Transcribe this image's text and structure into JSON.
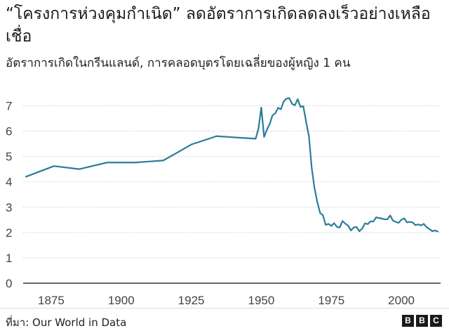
{
  "header": {
    "title": "“โครงการห่วงคุมกำเนิด” ลดอัตราการเกิดลดลงเร็วอย่างเหลือเชื่อ",
    "subtitle": "อัตราการเกิดในกรีนแลนด์, การคลอดบุตรโดยเฉลี่ยของผู้หญิง 1 คน"
  },
  "footer": {
    "source": "ที่มา: Our World in Data",
    "logo_letters": [
      "B",
      "B",
      "C"
    ]
  },
  "colors": {
    "line": "#2b7c9a",
    "grid": "#d4d4d4",
    "baseline": "#333333",
    "tick_text": "#444444"
  },
  "chart_data": {
    "type": "line",
    "title": "“โครงการห่วงคุมกำเนิด” ลดอัตราการเกิดลดลงเร็วอย่างเหลือเชื่อ",
    "subtitle": "อัตราการเกิดในกรีนแลนด์, การคลอดบุตรโดยเฉลี่ยของผู้หญิง 1 คน",
    "xlabel": "",
    "ylabel": "",
    "xlim": [
      1865,
      2014
    ],
    "ylim": [
      0,
      7.4
    ],
    "xticks": [
      1875,
      1900,
      1925,
      1950,
      1975,
      2000
    ],
    "yticks": [
      0,
      1,
      2,
      3,
      4,
      5,
      6,
      7
    ],
    "grid": "horizontal",
    "legend": "none",
    "series": [
      {
        "x": [
          1866,
          1876,
          1885,
          1890,
          1895,
          1900,
          1905,
          1910,
          1915,
          1920,
          1925,
          1930,
          1934,
          1938,
          1942,
          1945,
          1948,
          1949,
          1950,
          1951,
          1952,
          1953,
          1954,
          1955,
          1956,
          1957,
          1958,
          1959,
          1960,
          1961,
          1962,
          1963,
          1964,
          1965,
          1966,
          1967,
          1968,
          1969,
          1970,
          1971,
          1972,
          1973,
          1974,
          1975,
          1976,
          1977,
          1978,
          1979,
          1980,
          1981,
          1982,
          1983,
          1984,
          1985,
          1986,
          1987,
          1988,
          1989,
          1990,
          1991,
          1992,
          1993,
          1994,
          1995,
          1996,
          1997,
          1998,
          1999,
          2000,
          2001,
          2002,
          2003,
          2004,
          2005,
          2006,
          2007,
          2008,
          2009,
          2010,
          2011,
          2012,
          2013
        ],
        "values": [
          4.2,
          4.62,
          4.5,
          4.63,
          4.76,
          4.76,
          4.76,
          4.8,
          4.84,
          5.15,
          5.47,
          5.65,
          5.8,
          5.77,
          5.74,
          5.72,
          5.7,
          6.1,
          6.93,
          5.77,
          6.05,
          6.28,
          6.62,
          6.7,
          6.92,
          6.86,
          7.17,
          7.28,
          7.3,
          7.07,
          7.02,
          7.26,
          6.95,
          6.98,
          6.37,
          5.8,
          4.55,
          3.75,
          3.2,
          2.77,
          2.68,
          2.3,
          2.34,
          2.26,
          2.37,
          2.22,
          2.2,
          2.45,
          2.35,
          2.27,
          2.08,
          2.2,
          2.22,
          2.05,
          2.15,
          2.36,
          2.33,
          2.44,
          2.43,
          2.6,
          2.57,
          2.55,
          2.52,
          2.52,
          2.67,
          2.47,
          2.42,
          2.38,
          2.5,
          2.56,
          2.4,
          2.42,
          2.4,
          2.29,
          2.32,
          2.28,
          2.34,
          2.21,
          2.14,
          2.05,
          2.08,
          2.04
        ]
      }
    ]
  }
}
